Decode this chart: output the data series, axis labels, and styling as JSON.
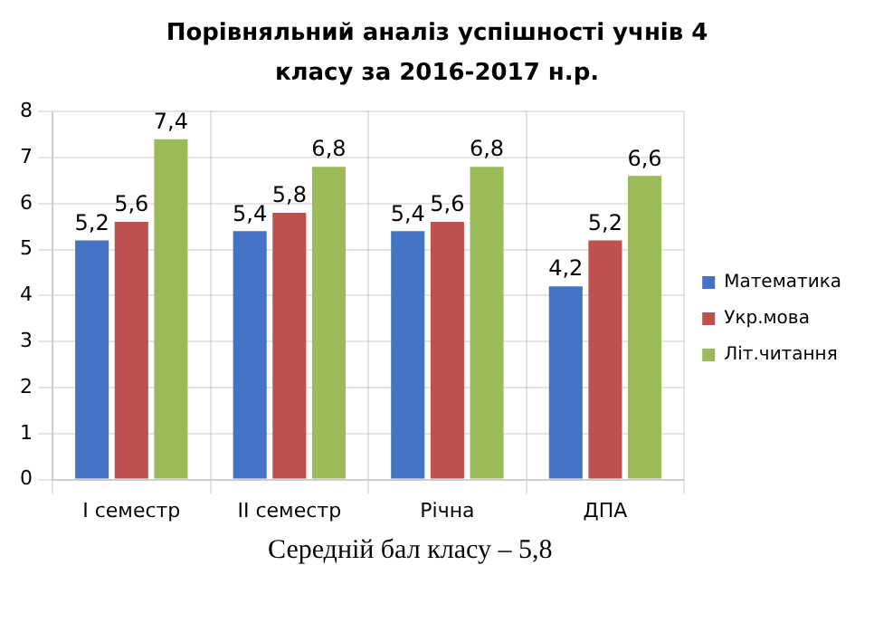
{
  "chart_data": {
    "type": "bar",
    "title": "Порівняльний аналіз успішності учнів 4 класу за 2016-2017 н.р.",
    "categories": [
      "I семестр",
      "II семестр",
      "Річна",
      "ДПА"
    ],
    "series": [
      {
        "name": "Математика",
        "color": "#4472c4",
        "values": [
          5.2,
          5.4,
          5.4,
          4.2
        ],
        "value_labels": [
          "5,2",
          "5,4",
          "5,4",
          "4,2"
        ]
      },
      {
        "name": "Укр.мова",
        "color": "#c0504d",
        "values": [
          5.6,
          5.8,
          5.6,
          5.2
        ],
        "value_labels": [
          "5,6",
          "5,8",
          "5,6",
          "5,2"
        ]
      },
      {
        "name": "Літ.читання",
        "color": "#9bbb59",
        "values": [
          7.4,
          6.8,
          6.8,
          6.6
        ],
        "value_labels": [
          "7,4",
          "6,8",
          "6,8",
          "6,6"
        ]
      }
    ],
    "ylim": [
      0,
      8
    ],
    "yticks": [
      0,
      1,
      2,
      3,
      4,
      5,
      6,
      7,
      8
    ],
    "grid": true,
    "legend": "right",
    "annotations": [
      "Середній бал класу – 5,8"
    ]
  }
}
